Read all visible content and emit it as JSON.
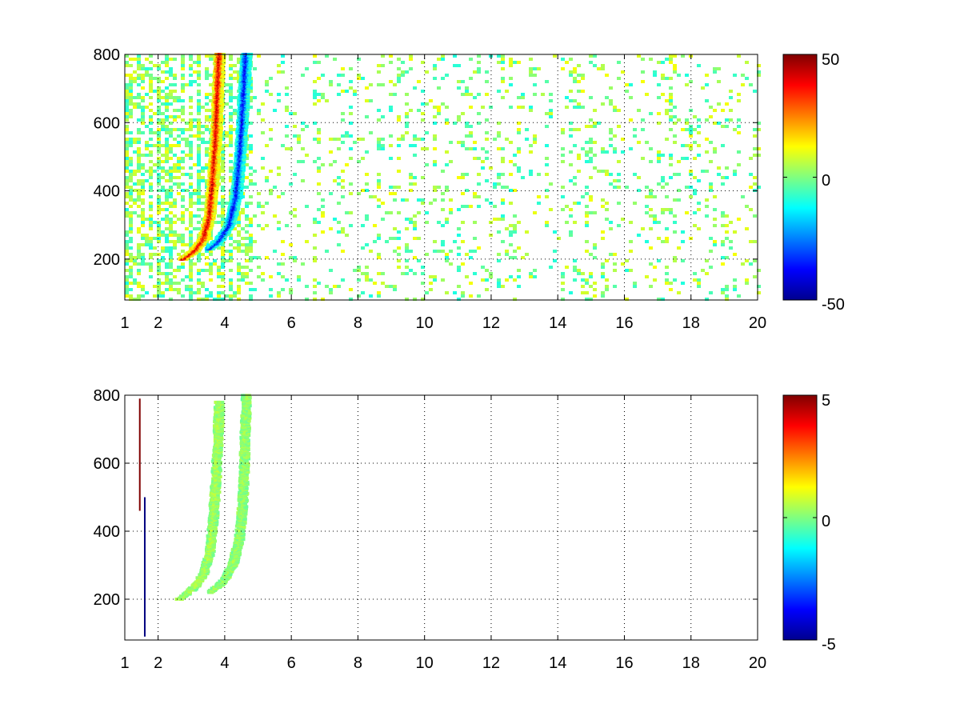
{
  "chart_data": [
    {
      "type": "heatmap",
      "name": "top",
      "title": "",
      "xlabel": "",
      "ylabel": "",
      "xlim": [
        1,
        20
      ],
      "ylim": [
        80,
        800
      ],
      "xticks": [
        1,
        2,
        4,
        6,
        8,
        10,
        12,
        14,
        16,
        18,
        20
      ],
      "xtick_labels": [
        "1",
        "2",
        "4",
        "6",
        "8",
        "10",
        "12",
        "14",
        "16",
        "18",
        "20"
      ],
      "yticks": [
        200,
        400,
        600,
        800
      ],
      "ytick_labels": [
        "200",
        "400",
        "600",
        "800"
      ],
      "grid": true,
      "colormap": "jet",
      "clim": [
        -50,
        50
      ],
      "colorbar_ticks": [
        -50,
        0,
        50
      ],
      "colorbar_labels": [
        "-50",
        "0",
        "50"
      ],
      "features": [
        {
          "kind": "ridge",
          "value": 42,
          "points": [
            [
              2.7,
              200
            ],
            [
              3.0,
              220
            ],
            [
              3.3,
              255
            ],
            [
              3.5,
              320
            ],
            [
              3.6,
              420
            ],
            [
              3.7,
              560
            ],
            [
              3.8,
              800
            ]
          ]
        },
        {
          "kind": "ridge",
          "value": -38,
          "points": [
            [
              3.5,
              230
            ],
            [
              3.8,
              255
            ],
            [
              4.1,
              300
            ],
            [
              4.3,
              380
            ],
            [
              4.4,
              480
            ],
            [
              4.5,
              620
            ],
            [
              4.6,
              800
            ]
          ]
        }
      ],
      "noise_value_range": [
        -10,
        12
      ]
    },
    {
      "type": "heatmap",
      "name": "bottom",
      "title": "",
      "xlabel": "",
      "ylabel": "",
      "xlim": [
        1,
        20
      ],
      "ylim": [
        80,
        800
      ],
      "xticks": [
        1,
        2,
        4,
        6,
        8,
        10,
        12,
        14,
        16,
        18,
        20
      ],
      "xtick_labels": [
        "1",
        "2",
        "4",
        "6",
        "8",
        "10",
        "12",
        "14",
        "16",
        "18",
        "20"
      ],
      "yticks": [
        200,
        400,
        600,
        800
      ],
      "ytick_labels": [
        "200",
        "400",
        "600",
        "800"
      ],
      "grid": true,
      "colormap": "jet",
      "clim": [
        -5,
        5
      ],
      "colorbar_ticks": [
        -5,
        0,
        5
      ],
      "colorbar_labels": [
        "-5",
        "0",
        "5"
      ],
      "features": [
        {
          "kind": "ridge",
          "value": 0.5,
          "points": [
            [
              2.6,
              200
            ],
            [
              3.0,
              230
            ],
            [
              3.3,
              270
            ],
            [
              3.5,
              330
            ],
            [
              3.6,
              420
            ],
            [
              3.7,
              560
            ],
            [
              3.8,
              780
            ]
          ]
        },
        {
          "kind": "ridge",
          "value": 0.3,
          "points": [
            [
              3.5,
              220
            ],
            [
              3.9,
              250
            ],
            [
              4.2,
              300
            ],
            [
              4.4,
              380
            ],
            [
              4.5,
              480
            ],
            [
              4.55,
              620
            ],
            [
              4.6,
              800
            ]
          ]
        },
        {
          "kind": "line",
          "value": 5,
          "x": 1.45,
          "y": [
            460,
            790
          ]
        },
        {
          "kind": "line",
          "value": -5,
          "x": 1.6,
          "y": [
            90,
            500
          ]
        }
      ]
    }
  ]
}
